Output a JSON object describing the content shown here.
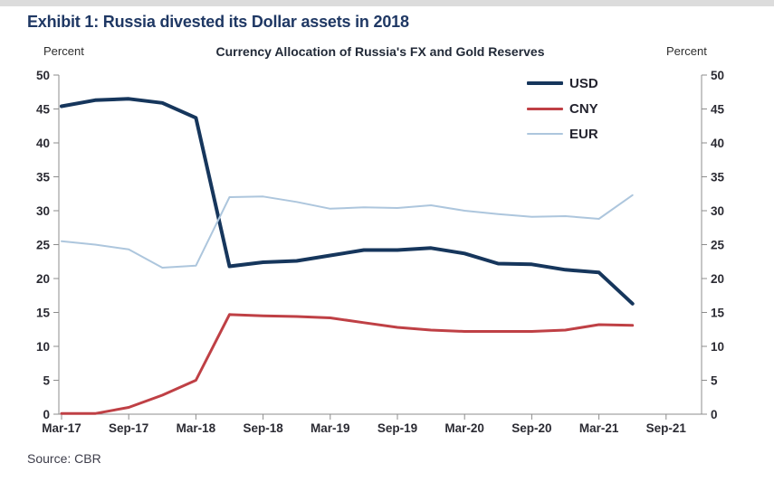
{
  "header": {
    "title": "Exhibit 1: Russia divested its Dollar assets in 2018",
    "percent_left": "Percent",
    "percent_right": "Percent"
  },
  "footer": {
    "source": "Source: CBR"
  },
  "colors": {
    "title": "#1f3864",
    "axis_line": "#8c8c8c",
    "tick_label": "#2b2b33",
    "background": "#ffffff",
    "top_strip": "#dcdcdc"
  },
  "chart_data": {
    "type": "line",
    "title": "Currency Allocation of Russia's FX and Gold Reserves",
    "ylabel_left": "Percent",
    "ylabel_right": "Percent",
    "ylim": [
      0,
      50
    ],
    "ytick_step": 5,
    "grid": false,
    "legend_position": "top-right-inside",
    "x_axis_tick_labels": [
      "Mar-17",
      "Sep-17",
      "Mar-18",
      "Sep-18",
      "Mar-19",
      "Sep-19",
      "Mar-20",
      "Sep-20",
      "Mar-21",
      "Sep-21"
    ],
    "x_categories": [
      "Mar-17",
      "Jun-17",
      "Sep-17",
      "Dec-17",
      "Mar-18",
      "Jun-18",
      "Sep-18",
      "Dec-18",
      "Mar-19",
      "Jun-19",
      "Sep-19",
      "Dec-19",
      "Mar-20",
      "Jun-20",
      "Sep-20",
      "Dec-20",
      "Mar-21",
      "Jun-21"
    ],
    "series": [
      {
        "name": "USD",
        "color": "#16365c",
        "line_width": 4,
        "values": [
          45.4,
          46.3,
          46.5,
          45.9,
          43.7,
          21.8,
          22.4,
          22.6,
          23.4,
          24.2,
          24.2,
          24.5,
          23.7,
          22.2,
          22.1,
          21.3,
          20.9,
          16.3
        ]
      },
      {
        "name": "CNY",
        "color": "#bf4045",
        "line_width": 3,
        "values": [
          0.1,
          0.1,
          1.0,
          2.8,
          5.0,
          14.7,
          14.5,
          14.4,
          14.2,
          13.5,
          12.8,
          12.4,
          12.2,
          12.2,
          12.2,
          12.4,
          13.2,
          13.1
        ]
      },
      {
        "name": "EUR",
        "color": "#adc6dd",
        "line_width": 2,
        "values": [
          25.5,
          25.0,
          24.3,
          21.6,
          21.9,
          32.0,
          32.1,
          31.3,
          30.3,
          30.5,
          30.4,
          30.8,
          30.0,
          29.5,
          29.1,
          29.2,
          28.8,
          32.3
        ]
      }
    ]
  }
}
